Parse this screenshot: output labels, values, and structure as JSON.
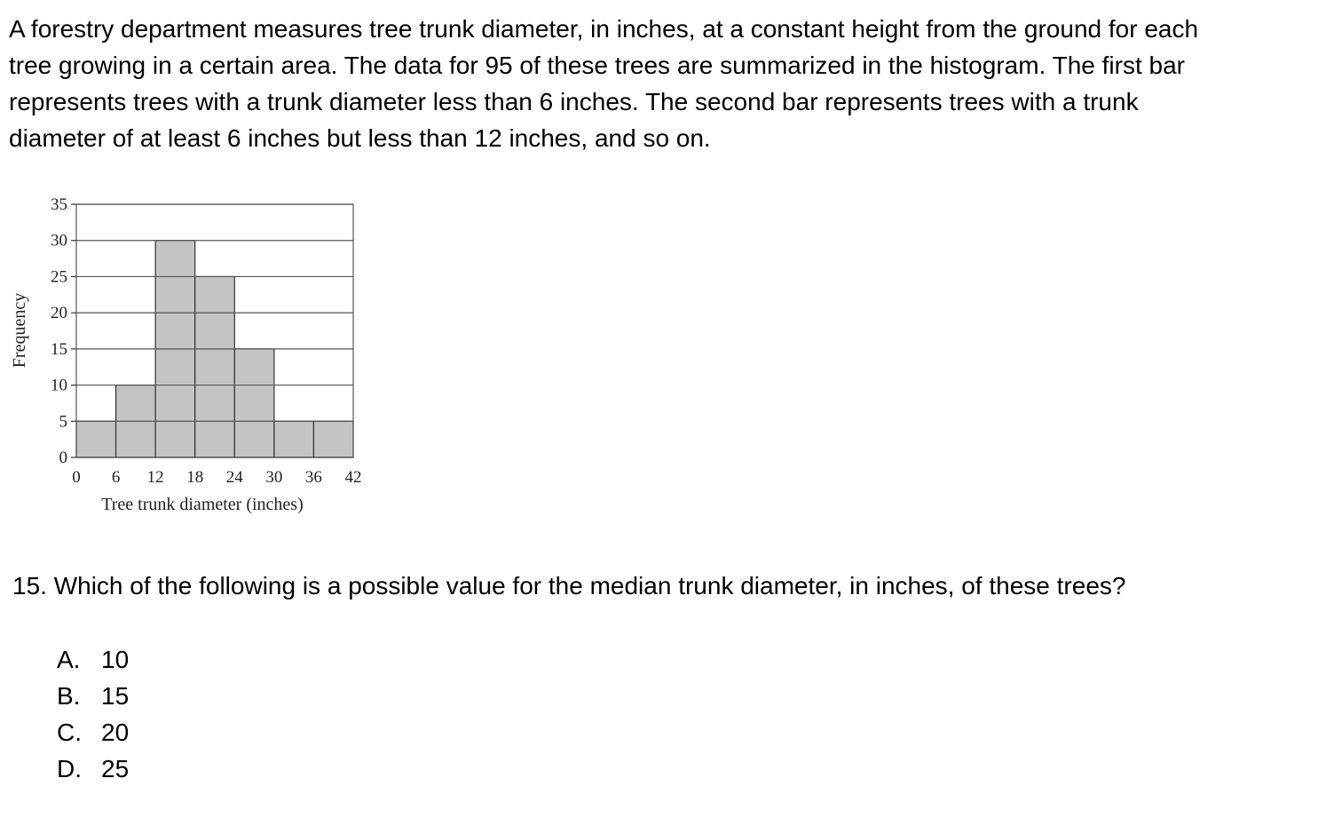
{
  "intro": {
    "lines": [
      "A forestry department measures tree trunk diameter, in inches, at a constant height from the ground for each",
      "tree growing in a certain area. The data for 95 of these trees are summarized in the histogram. The first bar",
      "represents trees with a trunk diameter less than 6 inches. The second bar represents trees with a trunk",
      "diameter of at least 6 inches but less than 12 inches, and so on."
    ]
  },
  "chart_data": {
    "type": "bar",
    "title": "",
    "xlabel": "Tree trunk diameter (inches)",
    "ylabel": "Frequency",
    "bins": [
      [
        0,
        6
      ],
      [
        6,
        12
      ],
      [
        12,
        18
      ],
      [
        18,
        24
      ],
      [
        24,
        30
      ],
      [
        30,
        36
      ],
      [
        36,
        42
      ]
    ],
    "values": [
      5,
      10,
      30,
      25,
      15,
      5,
      5
    ],
    "x_ticks": [
      0,
      6,
      12,
      18,
      24,
      30,
      36,
      42
    ],
    "y_ticks": [
      0,
      5,
      10,
      15,
      20,
      25,
      30,
      35
    ],
    "xlim": [
      0,
      42
    ],
    "ylim": [
      0,
      35
    ],
    "grid": "horizontal",
    "bar_color": "#c4c4c4",
    "grid_color": "#555555"
  },
  "question": {
    "text": "15. Which of the following is a possible value for the median trunk diameter, in inches, of these trees?"
  },
  "choices": [
    {
      "letter": "A.",
      "value": "10"
    },
    {
      "letter": "B.",
      "value": "15"
    },
    {
      "letter": "C.",
      "value": "20"
    },
    {
      "letter": "D.",
      "value": "25"
    }
  ]
}
